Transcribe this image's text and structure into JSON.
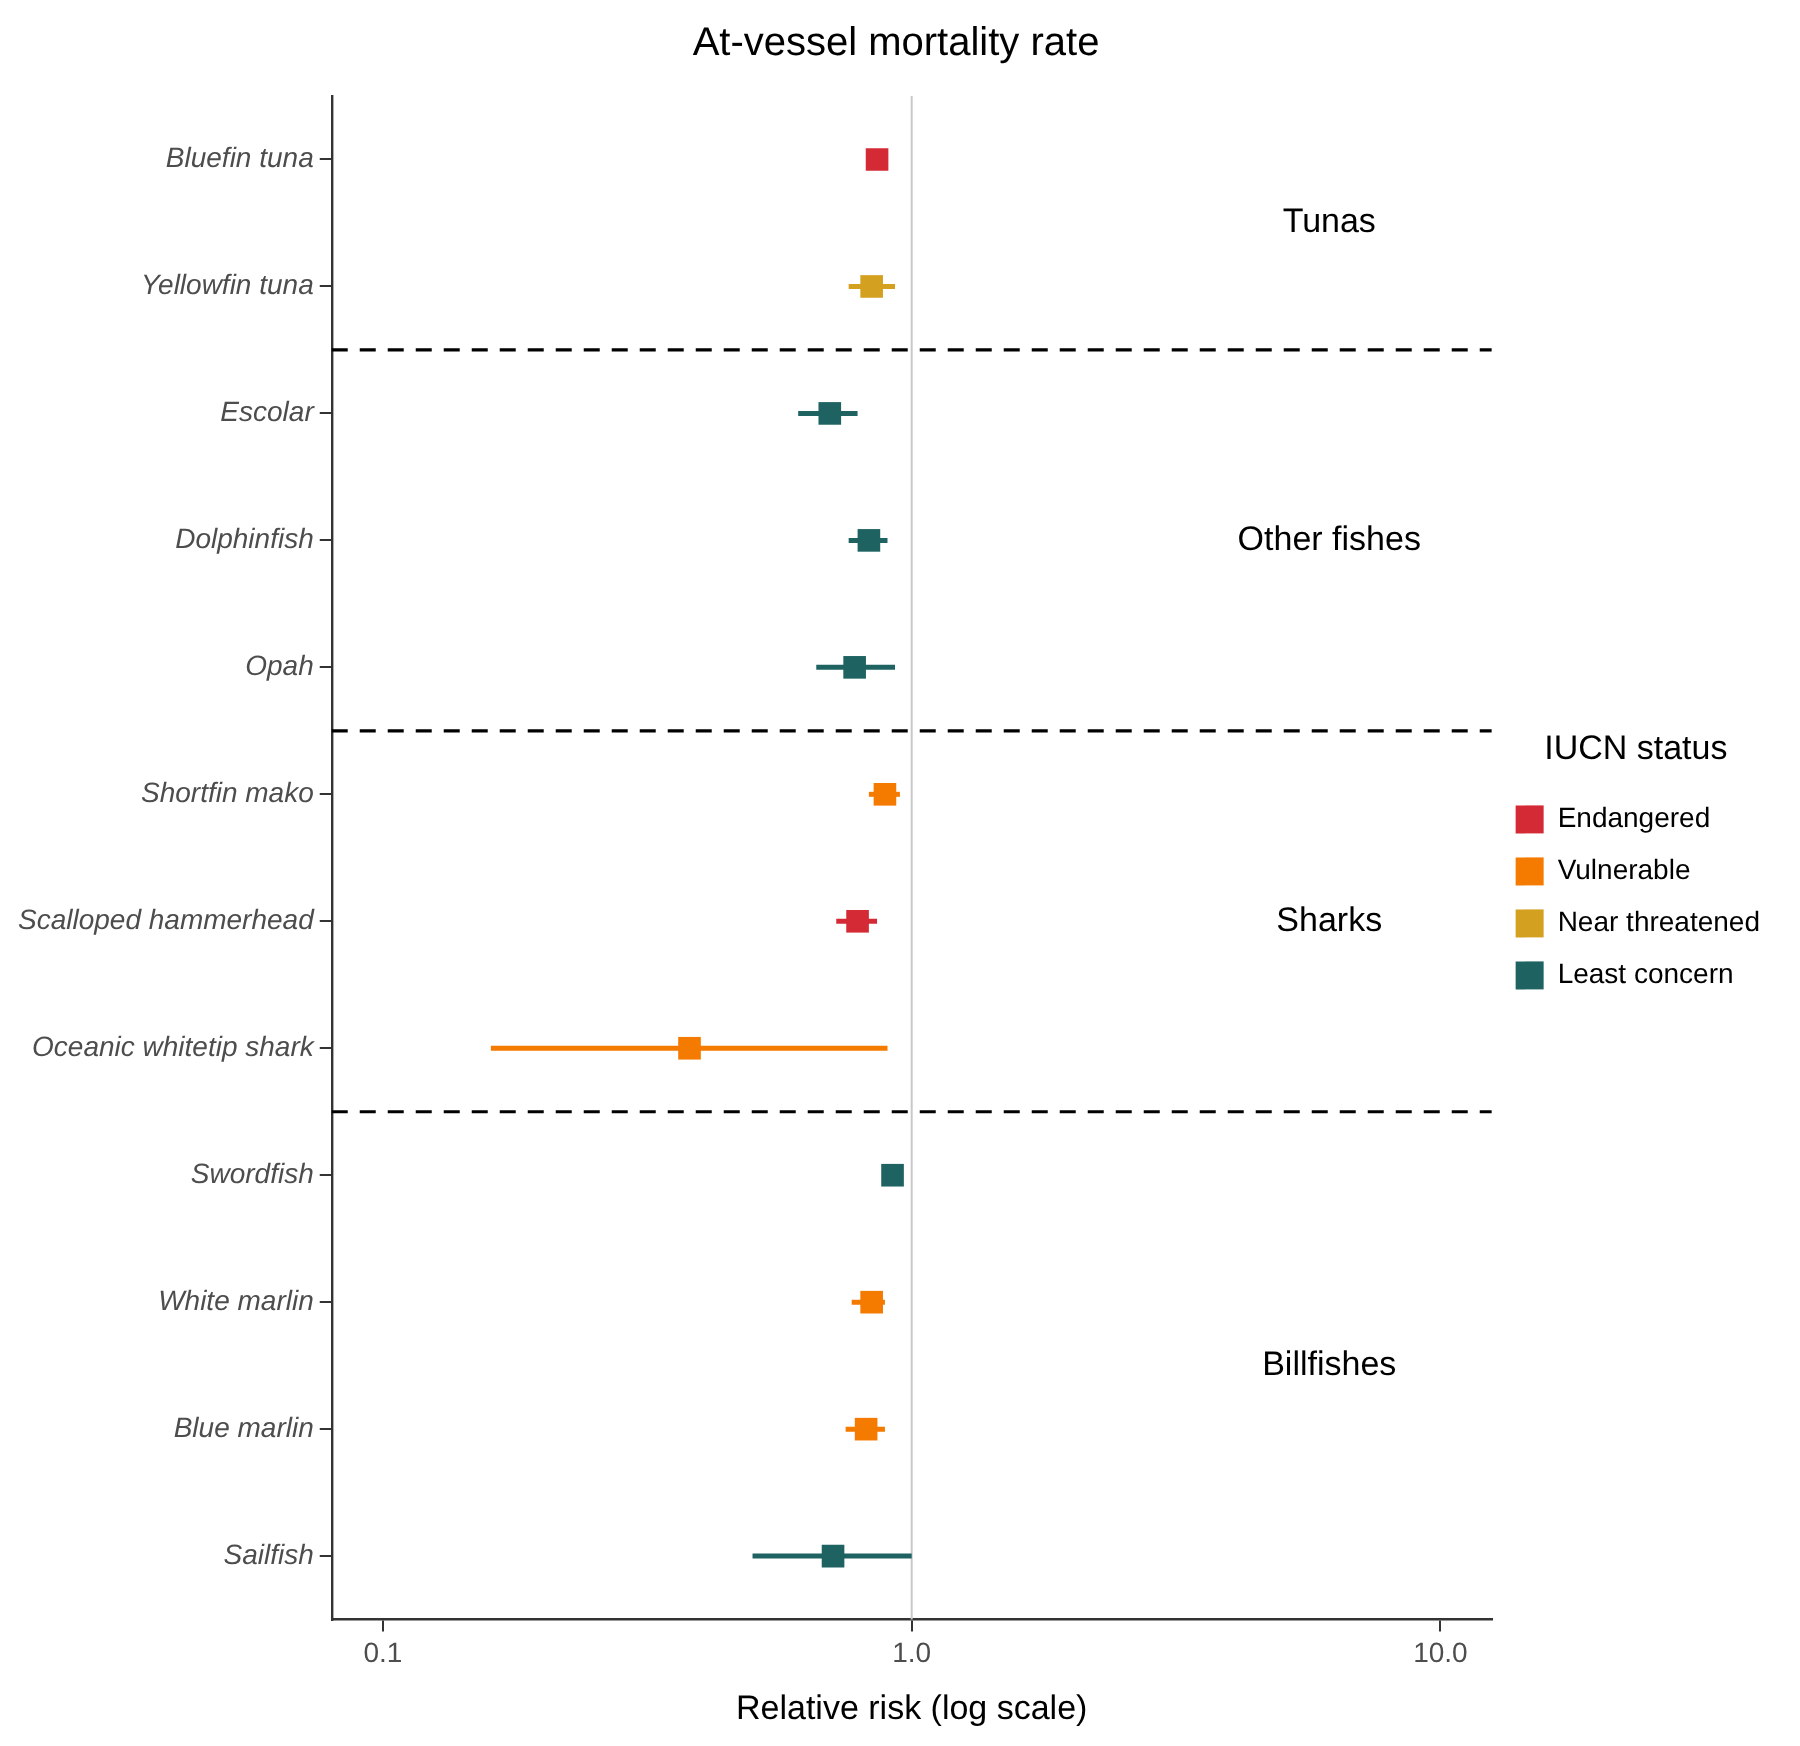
{
  "chart_data": {
    "type": "scatter",
    "orientation": "horizontal",
    "title": "At-vessel mortality rate",
    "xlabel": "Relative risk (log scale)",
    "legend_title": "IUCN status",
    "legend": "right",
    "grid": false,
    "marker": "square",
    "log": "x",
    "categories": [
      "Bluefin tuna",
      "Yellowfin tuna",
      "Escolar",
      "Dolphinfish",
      "Opah",
      "Shortfin mako",
      "Scalloped hammerhead",
      "Oceanic whitetip shark",
      "Swordfish",
      "White marlin",
      "Blue marlin",
      "Sailfish"
    ],
    "xlim": [
      0.08,
      12.5
    ],
    "xticks": [
      0.1,
      {
        "value": 1,
        "label": "1.0"
      },
      {
        "value": 10,
        "label": "10.0"
      }
    ],
    "series": [
      {
        "name": "Endangered",
        "color": "#d42a35",
        "values": [
          0.86,
          null,
          null,
          null,
          null,
          null,
          0.79,
          null,
          null,
          null,
          null,
          null
        ],
        "errors": [
          null,
          null,
          null,
          null,
          null,
          null,
          [
            0.72,
            0.86
          ],
          null,
          null,
          null,
          null,
          null
        ]
      },
      {
        "name": "Vulnerable",
        "color": "#f57a00",
        "values": [
          null,
          null,
          null,
          null,
          null,
          0.89,
          null,
          0.38,
          null,
          0.84,
          0.82,
          null
        ],
        "errors": [
          null,
          null,
          null,
          null,
          null,
          [
            0.83,
            0.95
          ],
          null,
          [
            0.16,
            0.9
          ],
          null,
          [
            0.77,
            0.89
          ],
          [
            0.75,
            0.89
          ],
          null
        ]
      },
      {
        "name": "Near threatened",
        "color": "#d4a020",
        "values": [
          null,
          0.84,
          null,
          null,
          null,
          null,
          null,
          null,
          null,
          null,
          null,
          null
        ],
        "errors": [
          null,
          [
            0.76,
            0.93
          ],
          null,
          null,
          null,
          null,
          null,
          null,
          null,
          null,
          null,
          null
        ]
      },
      {
        "name": "Least concern",
        "color": "#1f6262",
        "values": [
          null,
          null,
          0.7,
          0.83,
          0.78,
          null,
          null,
          null,
          0.92,
          null,
          null,
          0.71
        ],
        "errors": [
          null,
          null,
          [
            0.61,
            0.79
          ],
          [
            0.76,
            0.9
          ],
          [
            0.66,
            0.93
          ],
          null,
          null,
          null,
          null,
          null,
          null,
          [
            0.5,
            1
          ]
        ]
      }
    ],
    "ref_lines": [
      {
        "axis": "x",
        "value": 1,
        "color": "#c8c8c8",
        "line_style": "solid"
      }
    ],
    "annotations": [
      "Tunas",
      "Other fishes",
      "Sharks",
      "Billfishes"
    ]
  }
}
